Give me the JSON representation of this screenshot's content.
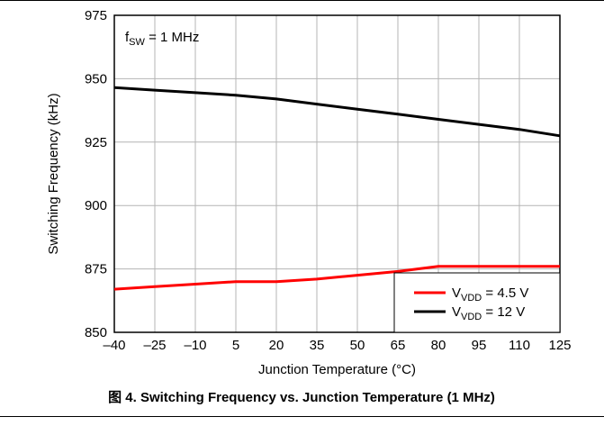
{
  "caption": "图 4. Switching Frequency vs. Junction Temperature (1 MHz)",
  "chart_data": {
    "type": "line",
    "xlabel": "Junction Temperature (°C)",
    "ylabel": "Switching Frequency (kHz)",
    "xlim": [
      -40,
      125
    ],
    "ylim": [
      850,
      975
    ],
    "x_ticks": [
      -40,
      -25,
      -10,
      5,
      20,
      35,
      50,
      65,
      80,
      95,
      110,
      125
    ],
    "x_tick_labels": [
      "–40",
      "–25",
      "–10",
      "5",
      "20",
      "35",
      "50",
      "65",
      "80",
      "95",
      "110",
      "125"
    ],
    "y_ticks": [
      850,
      875,
      900,
      925,
      950,
      975
    ],
    "grid": true,
    "annotation": {
      "main": "f",
      "sub": "SW",
      "rest": " = 1 MHz"
    },
    "legend_position": "bottom-right",
    "series": [
      {
        "name": "V_VDD = 4.5 V",
        "label_main": "V",
        "label_sub": "VDD",
        "label_rest": " = 4.5 V",
        "color": "#ff0000",
        "x": [
          -40,
          -25,
          -10,
          5,
          20,
          35,
          50,
          65,
          80,
          95,
          110,
          125
        ],
        "y": [
          867,
          868,
          869,
          870,
          870,
          871,
          872.5,
          874,
          876,
          876,
          876,
          876
        ]
      },
      {
        "name": "V_VDD = 12 V",
        "label_main": "V",
        "label_sub": "VDD",
        "label_rest": " = 12 V",
        "color": "#000000",
        "x": [
          -40,
          -25,
          -10,
          5,
          20,
          35,
          50,
          65,
          80,
          95,
          110,
          125
        ],
        "y": [
          946.5,
          945.5,
          944.5,
          943.5,
          942,
          940,
          938,
          936,
          934,
          932,
          930,
          927.5
        ]
      }
    ]
  }
}
